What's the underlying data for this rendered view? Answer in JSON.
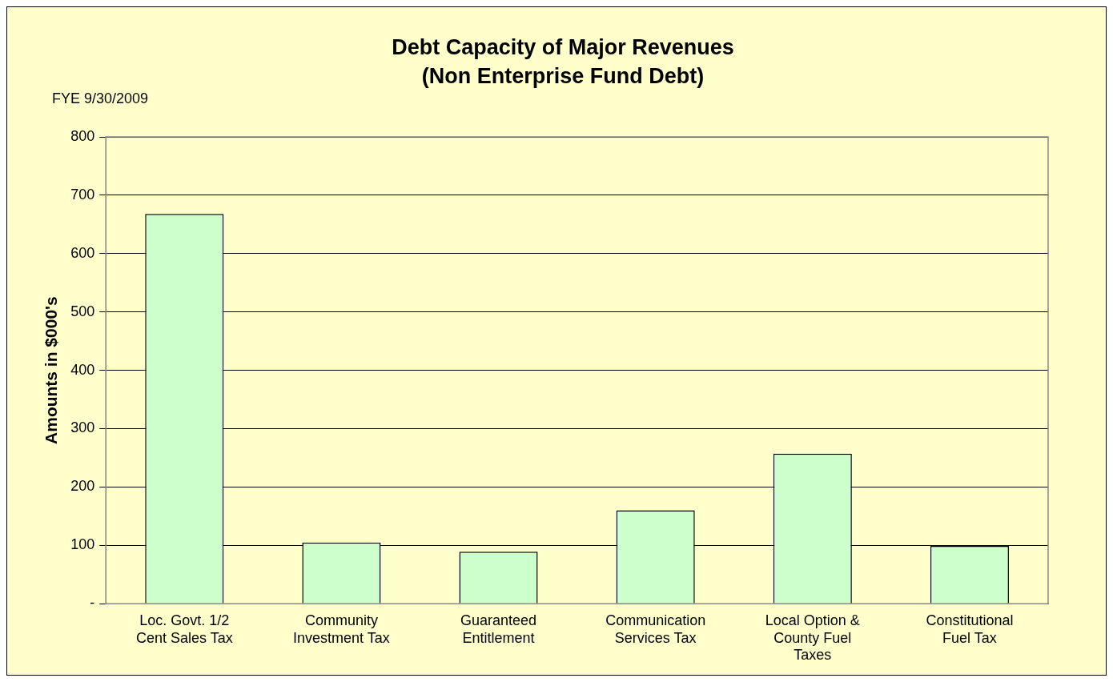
{
  "chart_data": {
    "type": "bar",
    "title": "Debt Capacity of Major Revenues\n(Non Enterprise Fund Debt)",
    "subtitle": "FYE 9/30/2009",
    "ylabel": "Amounts in $000's",
    "categories": [
      "Loc. Govt. 1/2 Cent Sales Tax",
      "Community Investment Tax",
      "Guaranteed Entitlement",
      "Communication Services Tax",
      "Local Option & County Fuel Taxes",
      "Constitutional Fuel Tax"
    ],
    "values": [
      668,
      105,
      89,
      160,
      257,
      99
    ],
    "color": "#ccffcc",
    "ylim": [
      0,
      800
    ],
    "yticks": [
      {
        "value": 0,
        "label": "-"
      },
      100,
      200,
      300,
      400,
      500,
      600,
      700,
      800
    ],
    "grid": "y",
    "legend": false
  }
}
